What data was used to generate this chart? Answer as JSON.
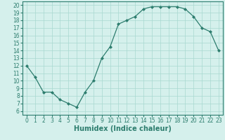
{
  "x": [
    0,
    1,
    2,
    3,
    4,
    5,
    6,
    7,
    8,
    9,
    10,
    11,
    12,
    13,
    14,
    15,
    16,
    17,
    18,
    19,
    20,
    21,
    22,
    23
  ],
  "y": [
    12,
    10.5,
    8.5,
    8.5,
    7.5,
    7.0,
    6.5,
    8.5,
    10.0,
    13.0,
    14.5,
    17.5,
    18.0,
    18.5,
    19.5,
    19.8,
    19.8,
    19.8,
    19.8,
    19.5,
    18.5,
    17.0,
    16.5,
    14.0
  ],
  "line_color": "#2d7d6e",
  "marker": "D",
  "marker_size": 2,
  "bg_color": "#d5f0ec",
  "grid_color": "#a8d8d0",
  "xlabel": "Humidex (Indice chaleur)",
  "xlim": [
    -0.5,
    23.5
  ],
  "ylim": [
    5.5,
    20.5
  ],
  "yticks": [
    6,
    7,
    8,
    9,
    10,
    11,
    12,
    13,
    14,
    15,
    16,
    17,
    18,
    19,
    20
  ],
  "xticks": [
    0,
    1,
    2,
    3,
    4,
    5,
    6,
    7,
    8,
    9,
    10,
    11,
    12,
    13,
    14,
    15,
    16,
    17,
    18,
    19,
    20,
    21,
    22,
    23
  ],
  "xtick_labels": [
    "0",
    "1",
    "2",
    "3",
    "4",
    "5",
    "6",
    "7",
    "8",
    "9",
    "10",
    "11",
    "12",
    "13",
    "14",
    "15",
    "16",
    "17",
    "18",
    "19",
    "20",
    "21",
    "22",
    "23"
  ],
  "tick_fontsize": 5.5,
  "xlabel_fontsize": 7,
  "label_color": "#2d7d6e",
  "tick_color": "#2d7d6e",
  "spine_color": "#2d7d6e"
}
